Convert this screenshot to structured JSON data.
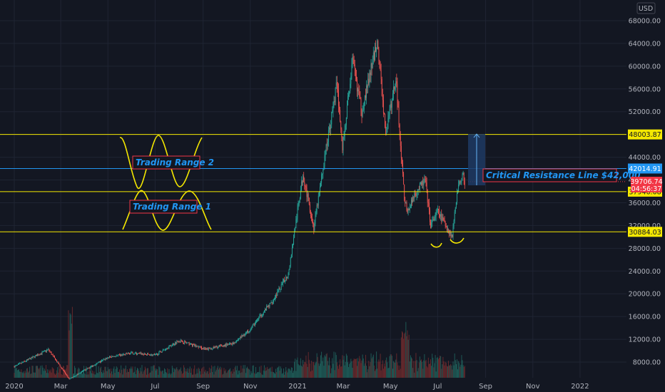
{
  "chart_data": {
    "type": "candlestick",
    "currency": "USD",
    "y_ticks": [
      "8000.00",
      "12000.00",
      "16000.00",
      "20000.00",
      "24000.00",
      "28000.00",
      "32000.00",
      "36000.00",
      "40000.00",
      "44000.00",
      "48000.00",
      "52000.00",
      "56000.00",
      "60000.00",
      "64000.00",
      "68000.00"
    ],
    "x_ticks": [
      "2020",
      "Mar",
      "May",
      "Jul",
      "Sep",
      "Nov",
      "2021",
      "Mar",
      "May",
      "Jul",
      "Sep",
      "Nov",
      "2022"
    ],
    "ylim": [
      6800,
      69500
    ],
    "price_path": [
      {
        "date": "2020-01-01",
        "price": 7200
      },
      {
        "date": "2020-02-14",
        "price": 10200
      },
      {
        "date": "2020-03-12",
        "price": 5000
      },
      {
        "date": "2020-04-01",
        "price": 6600
      },
      {
        "date": "2020-05-01",
        "price": 8800
      },
      {
        "date": "2020-06-01",
        "price": 9600
      },
      {
        "date": "2020-07-01",
        "price": 9200
      },
      {
        "date": "2020-08-01",
        "price": 11800
      },
      {
        "date": "2020-09-05",
        "price": 10200
      },
      {
        "date": "2020-10-10",
        "price": 11300
      },
      {
        "date": "2020-11-01",
        "price": 13800
      },
      {
        "date": "2020-12-01",
        "price": 19000
      },
      {
        "date": "2020-12-20",
        "price": 23500
      },
      {
        "date": "2021-01-08",
        "price": 41000
      },
      {
        "date": "2021-01-22",
        "price": 31500
      },
      {
        "date": "2021-02-08",
        "price": 46500
      },
      {
        "date": "2021-02-21",
        "price": 57000
      },
      {
        "date": "2021-02-28",
        "price": 45500
      },
      {
        "date": "2021-03-13",
        "price": 61000
      },
      {
        "date": "2021-03-25",
        "price": 52000
      },
      {
        "date": "2021-04-14",
        "price": 64500
      },
      {
        "date": "2021-04-25",
        "price": 48000
      },
      {
        "date": "2021-05-08",
        "price": 58000
      },
      {
        "date": "2021-05-19",
        "price": 37000
      },
      {
        "date": "2021-05-23",
        "price": 34000
      },
      {
        "date": "2021-06-01",
        "price": 37500
      },
      {
        "date": "2021-06-15",
        "price": 40000
      },
      {
        "date": "2021-06-22",
        "price": 32000
      },
      {
        "date": "2021-07-01",
        "price": 34500
      },
      {
        "date": "2021-07-20",
        "price": 30000
      },
      {
        "date": "2021-07-26",
        "price": 38000
      },
      {
        "date": "2021-08-02",
        "price": 41000
      },
      {
        "date": "2021-08-05",
        "price": 39706.74
      }
    ],
    "horizontal_levels": [
      {
        "value": 48003.87,
        "label": "48003.87",
        "color": "#f5e800"
      },
      {
        "value": 42014.91,
        "label": "42014.91",
        "color": "#2196f3"
      },
      {
        "value": 37946.08,
        "label": "37946.08",
        "color": "#f5e800"
      },
      {
        "value": 30884.03,
        "label": "30884.03",
        "color": "#f5e800"
      }
    ],
    "last_price": {
      "value": 39706.74,
      "label": "39706.74",
      "countdown": "04:56:37",
      "color": "#f23645"
    },
    "annotations": [
      {
        "text": "Trading Range 2",
        "color": "#2196f3",
        "border": "#f23645"
      },
      {
        "text": "Trading Range 1",
        "color": "#2196f3",
        "border": "#f23645"
      },
      {
        "text": "Critical Resistance Line $42,000",
        "color": "#2196f3",
        "border": "#f23645"
      }
    ],
    "colors": {
      "up": "#26a69a",
      "down": "#ef5350",
      "background": "#131722",
      "grid": "#1f2433",
      "highlight": "#f5e800",
      "volume_up": "#1f5f5a",
      "volume_down": "#6b2a2d"
    }
  }
}
